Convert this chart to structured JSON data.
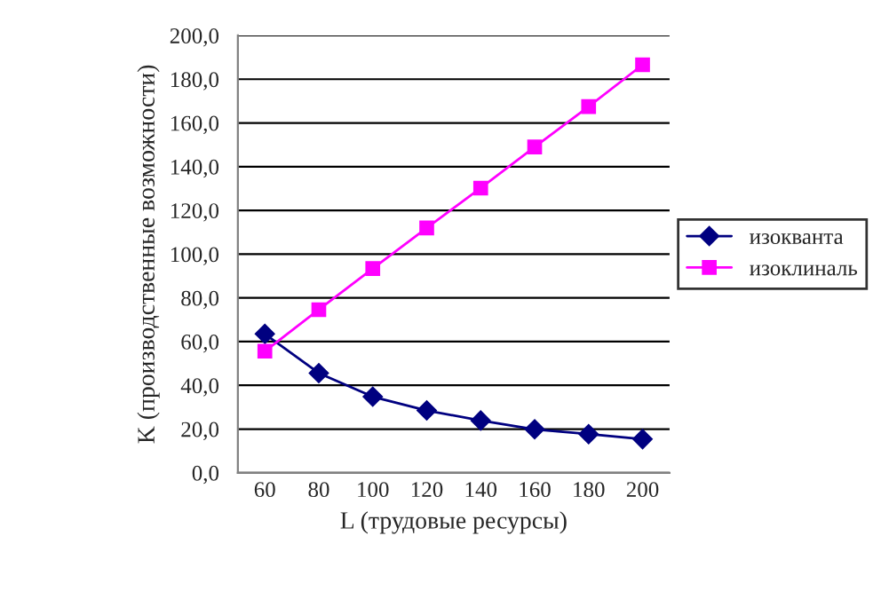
{
  "chart_data": {
    "type": "line",
    "xlabel": "L (трудовые ресурсы)",
    "ylabel": "K (производственные возможности)",
    "categories": [
      "60",
      "80",
      "100",
      "120",
      "140",
      "160",
      "180",
      "200"
    ],
    "series": [
      {
        "name": "изокванта",
        "color": "#000080",
        "marker": "diamond",
        "values": [
          63.5,
          45.6,
          34.8,
          28.5,
          23.9,
          19.9,
          17.7,
          15.4
        ]
      },
      {
        "name": "изоклиналь",
        "color": "#ff00ff",
        "marker": "square",
        "values": [
          55.6,
          74.6,
          93.4,
          112,
          130.2,
          149,
          167.5,
          186.6
        ]
      }
    ],
    "ylim": [
      0,
      200
    ],
    "yticks": [
      {
        "value": 0,
        "label": "0,0"
      },
      {
        "value": 20,
        "label": "20,0"
      },
      {
        "value": 40,
        "label": "40,0"
      },
      {
        "value": 60,
        "label": "60,0"
      },
      {
        "value": 80,
        "label": "80,0"
      },
      {
        "value": 100,
        "label": "100,0"
      },
      {
        "value": 120,
        "label": "120,0"
      },
      {
        "value": 140,
        "label": "140,0"
      },
      {
        "value": 160,
        "label": "160,0"
      },
      {
        "value": 180,
        "label": "180,0"
      },
      {
        "value": 200,
        "label": "200,0"
      }
    ],
    "grid": "y",
    "legend": "right"
  }
}
